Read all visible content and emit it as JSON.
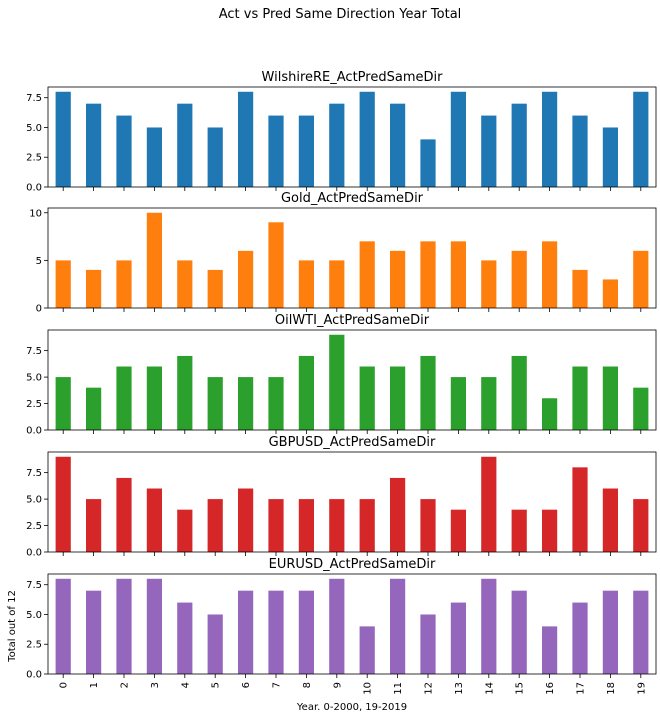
{
  "chart_data": {
    "type": "bar",
    "suptitle": "Act vs Pred Same Direction Year Total",
    "xlabel": "Year. 0-2000, 19-2019",
    "ylabel": "Total out of 12",
    "categories": [
      "0",
      "1",
      "2",
      "3",
      "4",
      "5",
      "6",
      "7",
      "8",
      "9",
      "10",
      "11",
      "12",
      "13",
      "14",
      "15",
      "16",
      "17",
      "18",
      "19"
    ],
    "panels": [
      {
        "title": "WilshireRE_ActPredSameDir",
        "color": "#1f77b4",
        "ylim": [
          0,
          8.4
        ],
        "yticks": [
          {
            "v": 0,
            "label": "0.0"
          },
          {
            "v": 2.5,
            "label": "2.5"
          },
          {
            "v": 5,
            "label": "5.0"
          },
          {
            "v": 7.5,
            "label": "7.5"
          }
        ],
        "values": [
          8,
          7,
          6,
          5,
          7,
          5,
          8,
          6,
          6,
          7,
          8,
          7,
          4,
          8,
          6,
          7,
          8,
          6,
          5,
          8
        ]
      },
      {
        "title": "Gold_ActPredSameDir",
        "color": "#ff7f0e",
        "ylim": [
          0,
          10.5
        ],
        "yticks": [
          {
            "v": 0,
            "label": "0"
          },
          {
            "v": 5,
            "label": "5"
          },
          {
            "v": 10,
            "label": "10"
          }
        ],
        "values": [
          5,
          4,
          5,
          10,
          5,
          4,
          6,
          9,
          5,
          5,
          7,
          6,
          7,
          7,
          5,
          6,
          7,
          4,
          3,
          6
        ]
      },
      {
        "title": "OilWTI_ActPredSameDir",
        "color": "#2ca02c",
        "ylim": [
          0,
          9.45
        ],
        "yticks": [
          {
            "v": 0,
            "label": "0.0"
          },
          {
            "v": 2.5,
            "label": "2.5"
          },
          {
            "v": 5,
            "label": "5.0"
          },
          {
            "v": 7.5,
            "label": "7.5"
          }
        ],
        "values": [
          5,
          4,
          6,
          6,
          7,
          5,
          5,
          5,
          7,
          9,
          6,
          6,
          7,
          5,
          5,
          7,
          3,
          6,
          6,
          4
        ]
      },
      {
        "title": "GBPUSD_ActPredSameDir",
        "color": "#d62728",
        "ylim": [
          0,
          9.45
        ],
        "yticks": [
          {
            "v": 0,
            "label": "0.0"
          },
          {
            "v": 2.5,
            "label": "2.5"
          },
          {
            "v": 5,
            "label": "5.0"
          },
          {
            "v": 7.5,
            "label": "7.5"
          }
        ],
        "values": [
          9,
          5,
          7,
          6,
          4,
          5,
          6,
          5,
          5,
          5,
          5,
          7,
          5,
          4,
          9,
          4,
          4,
          8,
          6,
          5
        ]
      },
      {
        "title": "EURUSD_ActPredSameDir",
        "color": "#9467bd",
        "ylim": [
          0,
          8.4
        ],
        "yticks": [
          {
            "v": 0,
            "label": "0.0"
          },
          {
            "v": 2.5,
            "label": "2.5"
          },
          {
            "v": 5,
            "label": "5.0"
          },
          {
            "v": 7.5,
            "label": "7.5"
          }
        ],
        "values": [
          8,
          7,
          8,
          8,
          6,
          5,
          7,
          7,
          7,
          8,
          4,
          8,
          5,
          6,
          8,
          7,
          4,
          6,
          7,
          7
        ]
      }
    ]
  }
}
